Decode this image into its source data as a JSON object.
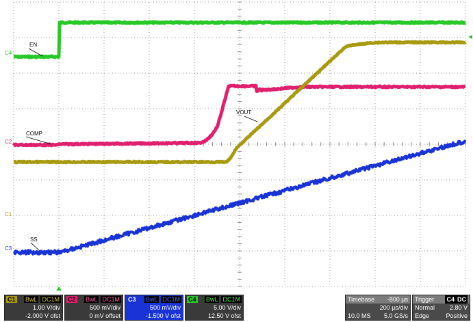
{
  "colors": {
    "c1": "#a89a10",
    "c2": "#e0206e",
    "c3": "#1a33d6",
    "c4": "#28c828"
  },
  "traces": {
    "en_label": "EN",
    "comp_label": "COMP",
    "vout_label": "VOUT",
    "ss_label": "SS",
    "c1_marker": "C1",
    "c2_marker": "C2",
    "c3_marker": "C3",
    "c4_marker": "C4"
  },
  "channels": [
    {
      "tag": "C1",
      "bwl": "BwL",
      "coupling": "DC1M",
      "scale": "1.00 V/div",
      "offset": "-2.000 V ofst"
    },
    {
      "tag": "C2",
      "bwl": "BwL",
      "coupling": "DC1M",
      "scale": "500 mV/div",
      "offset": "0 mV offset"
    },
    {
      "tag": "C3",
      "bwl": "BwL",
      "coupling": "DC1M",
      "scale": "500 mV/div",
      "offset": "-1.500 V ofst"
    },
    {
      "tag": "C4",
      "bwl": "BwL",
      "coupling": "DC1M",
      "scale": "5.00 V/div",
      "offset": "12.50 V ofst"
    }
  ],
  "timebase": {
    "label": "Timebase",
    "delay": "-800 µs",
    "scale": "200 µs/div",
    "samples": "10.0 MS",
    "rate": "5.0 GS/s"
  },
  "trigger": {
    "label": "Trigger",
    "source": "C4",
    "coupling": "DC",
    "mode": "Normal",
    "level": "2.80 V",
    "type": "Edge",
    "slope": "Positive"
  }
}
